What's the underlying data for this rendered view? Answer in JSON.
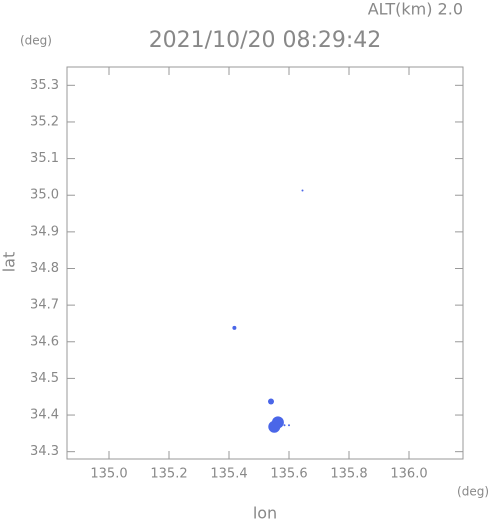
{
  "chart_data": {
    "type": "scatter",
    "title": "2021/10/20 08:29:42",
    "subtitle": "ALT(km) 2.0",
    "y_unit": "(deg)",
    "x_unit": "(deg)",
    "x_label": "lon",
    "y_label": "lat",
    "series": [
      {
        "color": "#4a66e8",
        "x": [
          135.645,
          135.418,
          135.54,
          135.563,
          135.551,
          135.585,
          135.6
        ],
        "values": [
          35.013,
          34.638,
          34.437,
          34.38,
          34.368,
          34.372,
          34.372
        ],
        "sizes": [
          1,
          2,
          3,
          6,
          6,
          1,
          1
        ]
      }
    ],
    "xlim": [
      134.86,
      136.18
    ],
    "ylim": [
      34.28,
      35.35
    ],
    "xticks": [
      {
        "value": 135.0,
        "label": "135.0"
      },
      135.2,
      135.4,
      135.6,
      135.8,
      {
        "value": 136.0,
        "label": "136.0"
      }
    ],
    "yticks": [
      34.3,
      34.4,
      34.5,
      34.6,
      34.7,
      34.8,
      34.9,
      {
        "value": 35.0,
        "label": "35.0"
      },
      35.1,
      35.2,
      35.3
    ]
  }
}
